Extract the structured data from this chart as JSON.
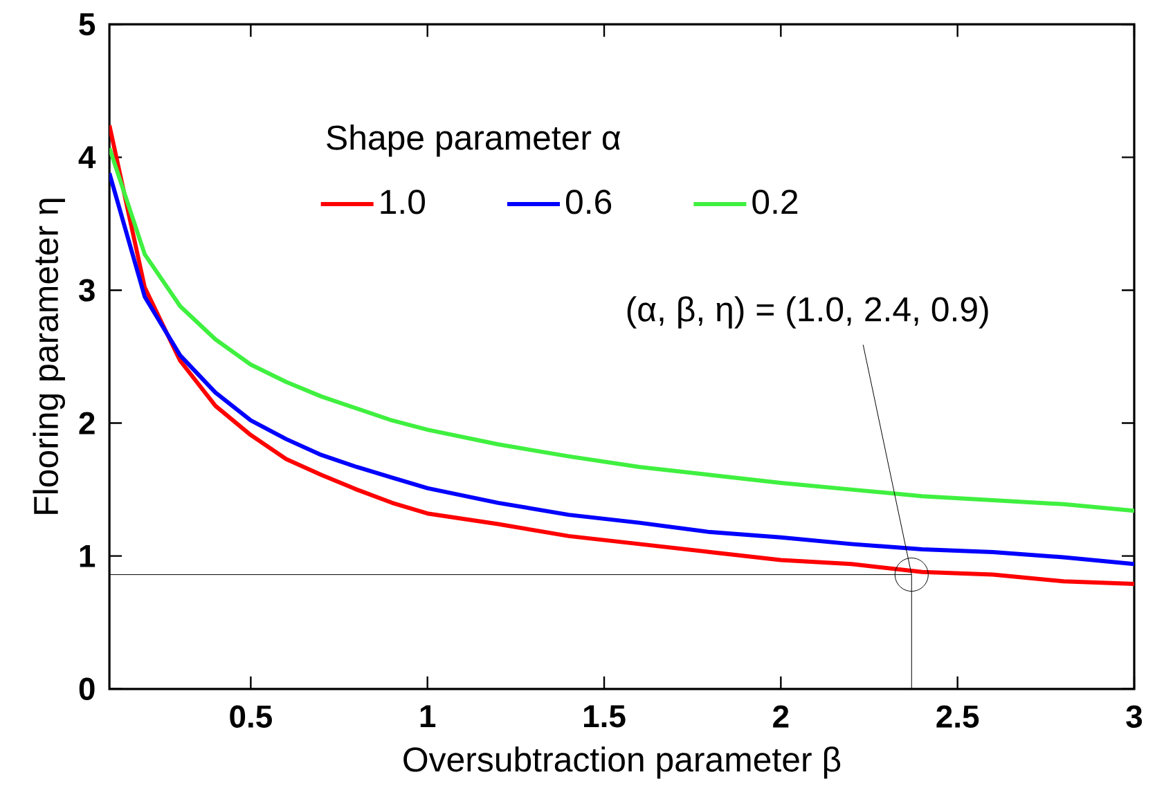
{
  "chart_data": {
    "type": "line",
    "xlabel": "Oversubtraction parameter β",
    "ylabel": "Flooring parameter η",
    "legend_title": "Shape parameter α",
    "x": [
      0.1,
      0.2,
      0.3,
      0.4,
      0.5,
      0.6,
      0.7,
      0.8,
      0.9,
      1.0,
      1.2,
      1.4,
      1.6,
      1.8,
      2.0,
      2.2,
      2.4,
      2.6,
      2.8,
      3.0
    ],
    "series": [
      {
        "name": "1.0",
        "color": "#ff0000",
        "values": [
          4.24,
          3.02,
          2.47,
          2.13,
          1.91,
          1.73,
          1.61,
          1.5,
          1.4,
          1.32,
          1.24,
          1.15,
          1.09,
          1.03,
          0.97,
          0.94,
          0.88,
          0.86,
          0.81,
          0.79
        ]
      },
      {
        "name": "0.6",
        "color": "#0000ff",
        "values": [
          3.88,
          2.95,
          2.51,
          2.23,
          2.02,
          1.88,
          1.76,
          1.67,
          1.59,
          1.51,
          1.4,
          1.31,
          1.25,
          1.18,
          1.14,
          1.09,
          1.05,
          1.03,
          0.99,
          0.94
        ]
      },
      {
        "name": "0.2",
        "color": "#40f040",
        "values": [
          4.07,
          3.27,
          2.88,
          2.63,
          2.44,
          2.31,
          2.2,
          2.11,
          2.02,
          1.95,
          1.84,
          1.75,
          1.67,
          1.61,
          1.55,
          1.5,
          1.45,
          1.42,
          1.39,
          1.34
        ]
      }
    ],
    "xlim": [
      0.1,
      3
    ],
    "ylim": [
      0,
      5
    ],
    "xticks": [
      0.5,
      1,
      1.5,
      2,
      2.5,
      3
    ],
    "yticks": [
      0,
      1,
      2,
      3,
      4,
      5
    ],
    "annotations": [
      {
        "text": "(α, β, η) = (1.0, 2.4, 0.9)",
        "x": 2.37,
        "y": 0.86
      }
    ],
    "ref_lines": [
      {
        "axis": "y",
        "value": 0.86,
        "color": "#000000"
      },
      {
        "axis": "x",
        "value": 2.37,
        "color": "#000000"
      }
    ],
    "legend": "top",
    "grid": false,
    "marker": "none",
    "line_style": "solid"
  }
}
